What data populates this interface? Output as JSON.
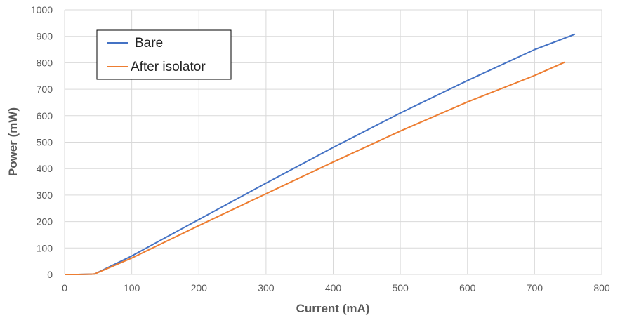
{
  "chart_data": {
    "type": "line",
    "title": "",
    "xlabel": "Current (mA)",
    "ylabel": "Power (mW)",
    "xlim": [
      0,
      800
    ],
    "ylim": [
      0,
      1000
    ],
    "xticks": [
      0,
      100,
      200,
      300,
      400,
      500,
      600,
      700,
      800
    ],
    "yticks": [
      0,
      100,
      200,
      300,
      400,
      500,
      600,
      700,
      800,
      900,
      1000
    ],
    "grid": true,
    "legend_position": "top-left",
    "series": [
      {
        "name": "Bare",
        "color": "#4472c4",
        "x": [
          0,
          20,
          40,
          45,
          100,
          200,
          300,
          400,
          500,
          600,
          700,
          760
        ],
        "y": [
          0,
          0,
          1,
          2,
          70,
          208,
          345,
          480,
          610,
          733,
          850,
          908
        ]
      },
      {
        "name": "After isolator",
        "color": "#ed7d31",
        "x": [
          0,
          20,
          40,
          45,
          100,
          200,
          300,
          400,
          500,
          600,
          700,
          745
        ],
        "y": [
          0,
          0,
          1,
          2,
          62,
          185,
          305,
          425,
          542,
          652,
          752,
          802
        ]
      }
    ]
  }
}
